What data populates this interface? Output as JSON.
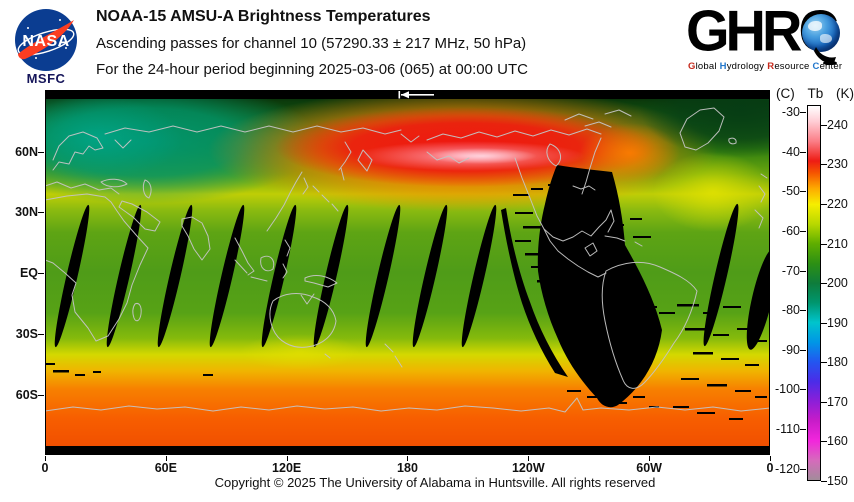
{
  "header": {
    "nasa": {
      "insignia_text": "NASA",
      "center_label": "MSFC"
    },
    "title": "NOAA-15 AMSU-A Brightness Temperatures",
    "subtitle_line1": "Ascending passes for channel 10 (57290.33 ± 217 MHz, 50 hPa)",
    "subtitle_line2": "For the 24-hour period beginning 2025-03-06 (065) at 00:00 UTC",
    "ghrc": {
      "acronym": "GHRC",
      "tagline": [
        {
          "initial": "G",
          "rest": "lobal",
          "color": "#c62b1e"
        },
        {
          "initial": "H",
          "rest": "ydrology",
          "color": "#2277cc"
        },
        {
          "initial": "R",
          "rest": "esource",
          "color": "#c62b1e"
        },
        {
          "initial": "C",
          "rest": "enter",
          "color": "#2277cc"
        }
      ]
    }
  },
  "map": {
    "y_axis": [
      "60N",
      "30N",
      "EQ",
      "30S",
      "60S"
    ],
    "x_axis": [
      "0",
      "60E",
      "120E",
      "180",
      "120W",
      "60W",
      "0"
    ]
  },
  "colorbar": {
    "unit_left": "(C)",
    "quantity": "Tb",
    "unit_right": "(K)",
    "celsius_ticks": [
      "-30",
      "-40",
      "-50",
      "-60",
      "-70",
      "-80",
      "-90",
      "-100",
      "-110",
      "-120"
    ],
    "kelvin_ticks": [
      "240",
      "230",
      "220",
      "210",
      "200",
      "190",
      "180",
      "170",
      "160",
      "150"
    ],
    "gradient": [
      {
        "k": 245,
        "color": "#ffffff"
      },
      {
        "k": 241,
        "color": "#ffccd4"
      },
      {
        "k": 236,
        "color": "#fb7d86"
      },
      {
        "k": 231,
        "color": "#ee1c14"
      },
      {
        "k": 228,
        "color": "#f55500"
      },
      {
        "k": 224,
        "color": "#fdab00"
      },
      {
        "k": 220,
        "color": "#f6ee00"
      },
      {
        "k": 215,
        "color": "#b8d800"
      },
      {
        "k": 210,
        "color": "#5fae00"
      },
      {
        "k": 205,
        "color": "#2d9014"
      },
      {
        "k": 200,
        "color": "#0e7c3c"
      },
      {
        "k": 195,
        "color": "#00966e"
      },
      {
        "k": 190,
        "color": "#00c4cc"
      },
      {
        "k": 185,
        "color": "#0096e6"
      },
      {
        "k": 180,
        "color": "#2356f0"
      },
      {
        "k": 175,
        "color": "#4b2ce8"
      },
      {
        "k": 170,
        "color": "#8c1fd8"
      },
      {
        "k": 165,
        "color": "#c81cc8"
      },
      {
        "k": 160,
        "color": "#f226dc"
      },
      {
        "k": 155,
        "color": "#d66abc"
      },
      {
        "k": 150,
        "color": "#a28c9a"
      }
    ]
  },
  "footer": {
    "copyright": "Copyright © 2025 The University of Alabama in Huntsville.  All rights reserved"
  },
  "brand_colors": {
    "nasa_blue": "#0b3d91",
    "nasa_red": "#fc3d21"
  }
}
